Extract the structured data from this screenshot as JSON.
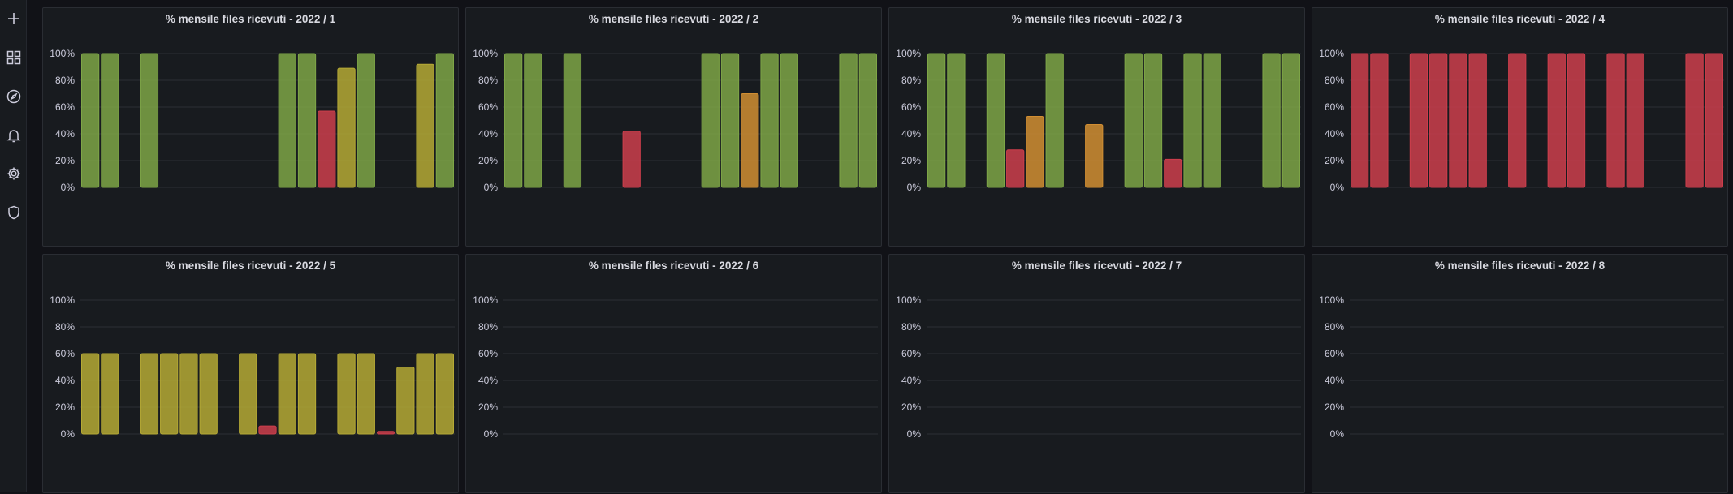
{
  "sidebar": {
    "items": [
      {
        "name": "add-icon"
      },
      {
        "name": "dashboards-icon"
      },
      {
        "name": "explore-icon"
      },
      {
        "name": "alerting-icon"
      },
      {
        "name": "settings-icon"
      },
      {
        "name": "shield-icon"
      }
    ]
  },
  "colors": {
    "green": "#7ea547",
    "yellow": "#b5a935",
    "orange": "#d18e33",
    "red": "#cd3e4c"
  },
  "chart_data": [
    {
      "type": "bar",
      "title": "% mensile files ricevuti - 2022 / 1",
      "ylim": [
        0,
        100
      ],
      "yticks": [
        "0%",
        "20%",
        "40%",
        "60%",
        "80%",
        "100%"
      ],
      "grid": true,
      "series": [
        {
          "values": [
            100,
            100,
            null,
            100,
            null,
            null,
            null,
            null,
            null,
            null,
            100,
            100,
            57,
            89,
            100,
            null,
            null,
            92,
            100
          ],
          "colors": [
            "green",
            "green",
            null,
            "green",
            null,
            null,
            null,
            null,
            null,
            null,
            "green",
            "green",
            "red",
            "yellow",
            "green",
            null,
            null,
            "yellow",
            "green"
          ]
        }
      ]
    },
    {
      "type": "bar",
      "title": "% mensile files ricevuti - 2022 / 2",
      "ylim": [
        0,
        100
      ],
      "yticks": [
        "0%",
        "20%",
        "40%",
        "60%",
        "80%",
        "100%"
      ],
      "grid": true,
      "series": [
        {
          "values": [
            100,
            100,
            null,
            100,
            null,
            null,
            42,
            null,
            null,
            null,
            100,
            100,
            70,
            100,
            100,
            null,
            null,
            100,
            100
          ],
          "colors": [
            "green",
            "green",
            null,
            "green",
            null,
            null,
            "red",
            null,
            null,
            null,
            "green",
            "green",
            "orange",
            "green",
            "green",
            null,
            null,
            "green",
            "green"
          ]
        }
      ]
    },
    {
      "type": "bar",
      "title": "% mensile files ricevuti - 2022 / 3",
      "ylim": [
        0,
        100
      ],
      "yticks": [
        "0%",
        "20%",
        "40%",
        "60%",
        "80%",
        "100%"
      ],
      "grid": true,
      "series": [
        {
          "values": [
            100,
            100,
            null,
            100,
            28,
            53,
            100,
            null,
            47,
            null,
            100,
            100,
            21,
            100,
            100,
            null,
            null,
            100,
            100
          ],
          "colors": [
            "green",
            "green",
            null,
            "green",
            "red",
            "orange",
            "green",
            null,
            "orange",
            null,
            "green",
            "green",
            "red",
            "green",
            "green",
            null,
            null,
            "green",
            "green"
          ]
        }
      ]
    },
    {
      "type": "bar",
      "title": "% mensile files ricevuti - 2022 / 4",
      "ylim": [
        0,
        100
      ],
      "yticks": [
        "0%",
        "20%",
        "40%",
        "60%",
        "80%",
        "100%"
      ],
      "grid": true,
      "series": [
        {
          "values": [
            100,
            100,
            null,
            100,
            100,
            100,
            100,
            null,
            100,
            null,
            100,
            100,
            null,
            100,
            100,
            null,
            null,
            100,
            100
          ],
          "colors": [
            "red",
            "red",
            null,
            "red",
            "red",
            "red",
            "red",
            null,
            "red",
            null,
            "red",
            "red",
            null,
            "red",
            "red",
            null,
            null,
            "red",
            "red"
          ]
        }
      ]
    },
    {
      "type": "bar",
      "title": "% mensile files ricevuti - 2022 / 5",
      "ylim": [
        0,
        100
      ],
      "yticks": [
        "0%",
        "20%",
        "40%",
        "60%",
        "80%",
        "100%"
      ],
      "grid": true,
      "series": [
        {
          "values": [
            60,
            60,
            null,
            60,
            60,
            60,
            60,
            null,
            60,
            6,
            60,
            60,
            null,
            60,
            60,
            2,
            50,
            60,
            60
          ],
          "colors": [
            "yellow",
            "yellow",
            null,
            "yellow",
            "yellow",
            "yellow",
            "yellow",
            null,
            "yellow",
            "red",
            "yellow",
            "yellow",
            null,
            "yellow",
            "yellow",
            "red",
            "yellow",
            "yellow",
            "yellow"
          ]
        }
      ]
    },
    {
      "type": "bar",
      "title": "% mensile files ricevuti - 2022 / 6",
      "ylim": [
        0,
        100
      ],
      "yticks": [
        "0%",
        "20%",
        "40%",
        "60%",
        "80%",
        "100%"
      ],
      "grid": true,
      "series": [
        {
          "values": [],
          "colors": []
        }
      ]
    },
    {
      "type": "bar",
      "title": "% mensile files ricevuti - 2022 / 7",
      "ylim": [
        0,
        100
      ],
      "yticks": [
        "0%",
        "20%",
        "40%",
        "60%",
        "80%",
        "100%"
      ],
      "grid": true,
      "series": [
        {
          "values": [],
          "colors": []
        }
      ]
    },
    {
      "type": "bar",
      "title": "% mensile files ricevuti - 2022 / 8",
      "ylim": [
        0,
        100
      ],
      "yticks": [
        "0%",
        "20%",
        "40%",
        "60%",
        "80%",
        "100%"
      ],
      "grid": true,
      "series": [
        {
          "values": [],
          "colors": []
        }
      ]
    }
  ]
}
